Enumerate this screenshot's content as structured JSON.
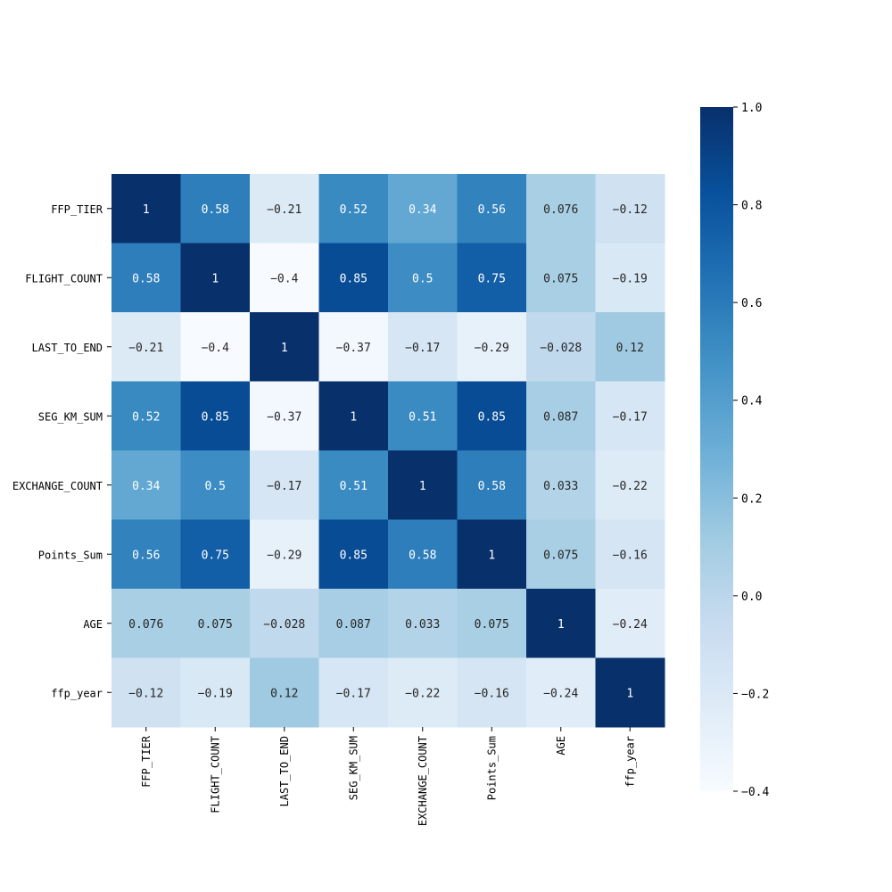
{
  "chart_data": {
    "type": "heatmap",
    "title": "",
    "xlabel": "",
    "ylabel": "",
    "labels": [
      "FFP_TIER",
      "FLIGHT_COUNT",
      "LAST_TO_END",
      "SEG_KM_SUM",
      "EXCHANGE_COUNT",
      "Points_Sum",
      "AGE",
      "ffp_year"
    ],
    "values": [
      [
        1,
        0.58,
        -0.21,
        0.52,
        0.34,
        0.56,
        0.076,
        -0.12
      ],
      [
        0.58,
        1,
        -0.4,
        0.85,
        0.5,
        0.75,
        0.075,
        -0.19
      ],
      [
        -0.21,
        -0.4,
        1,
        -0.37,
        -0.17,
        -0.29,
        -0.028,
        0.12
      ],
      [
        0.52,
        0.85,
        -0.37,
        1,
        0.51,
        0.85,
        0.087,
        -0.17
      ],
      [
        0.34,
        0.5,
        -0.17,
        0.51,
        1,
        0.58,
        0.033,
        -0.22
      ],
      [
        0.56,
        0.75,
        -0.29,
        0.85,
        0.58,
        1,
        0.075,
        -0.16
      ],
      [
        0.076,
        0.075,
        -0.028,
        0.087,
        0.033,
        0.075,
        1,
        -0.24
      ],
      [
        -0.12,
        -0.19,
        0.12,
        -0.17,
        -0.22,
        -0.16,
        -0.24,
        1
      ]
    ],
    "annotations": [
      [
        "1",
        "0.58",
        "-0.21",
        "0.52",
        "0.34",
        "0.56",
        "0.076",
        "-0.12"
      ],
      [
        "0.58",
        "1",
        "-0.4",
        "0.85",
        "0.5",
        "0.75",
        "0.075",
        "-0.19"
      ],
      [
        "-0.21",
        "-0.4",
        "1",
        "-0.37",
        "-0.17",
        "-0.29",
        "-0.028",
        "0.12"
      ],
      [
        "0.52",
        "0.85",
        "-0.37",
        "1",
        "0.51",
        "0.85",
        "0.087",
        "-0.17"
      ],
      [
        "0.34",
        "0.5",
        "-0.17",
        "0.51",
        "1",
        "0.58",
        "0.033",
        "-0.22"
      ],
      [
        "0.56",
        "0.75",
        "-0.29",
        "0.85",
        "0.58",
        "1",
        "0.075",
        "-0.16"
      ],
      [
        "0.076",
        "0.075",
        "-0.028",
        "0.087",
        "0.033",
        "0.075",
        "1",
        "-0.24"
      ],
      [
        "-0.12",
        "-0.19",
        "0.12",
        "-0.17",
        "-0.22",
        "-0.16",
        "-0.24",
        "1"
      ]
    ],
    "colorbar": {
      "vmin": -0.4,
      "vmax": 1.0,
      "ticks": [
        1.0,
        0.8,
        0.6,
        0.4,
        0.2,
        0.0,
        -0.2,
        -0.4
      ],
      "tick_labels": [
        "1.0",
        "0.8",
        "0.6",
        "0.4",
        "0.2",
        "0.0",
        "−0.2",
        "−0.4"
      ],
      "colormap": "Blues"
    },
    "colors": {
      "cmap_stops": [
        "#f7fbff",
        "#deebf7",
        "#c6dbef",
        "#9ecae1",
        "#6baed6",
        "#4292c6",
        "#2171b5",
        "#08519c",
        "#08306b"
      ],
      "dark_text": "#262626",
      "light_text": "#ffffff"
    }
  }
}
